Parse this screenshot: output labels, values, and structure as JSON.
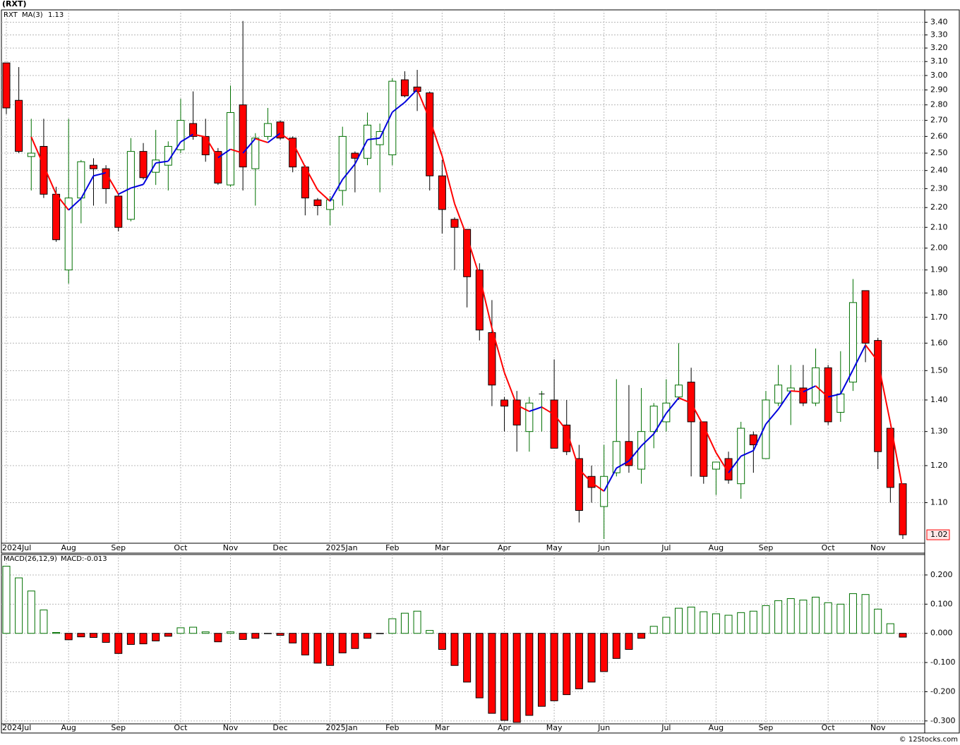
{
  "chart_data": [
    {
      "type": "candlestick",
      "title": "(RXT)",
      "symbol": "RXT",
      "log_scale": true,
      "grid": true,
      "up_color": "#007000",
      "down_color": "#ff0000",
      "categories": [
        "2024Jul",
        null,
        null,
        null,
        null,
        "Aug",
        null,
        null,
        null,
        "Sep",
        null,
        null,
        null,
        null,
        "Oct",
        null,
        null,
        null,
        "Nov",
        null,
        null,
        null,
        "Dec",
        null,
        null,
        null,
        "2025Jan",
        null,
        null,
        null,
        null,
        "Feb",
        null,
        null,
        null,
        "Mar",
        null,
        null,
        null,
        null,
        "Apr",
        null,
        null,
        null,
        "May",
        null,
        null,
        null,
        "Jun",
        null,
        null,
        null,
        null,
        "Jul",
        null,
        null,
        null,
        "Aug",
        null,
        null,
        null,
        "Sep",
        null,
        null,
        null,
        null,
        "Oct",
        null,
        null,
        null,
        "Nov",
        null,
        null
      ],
      "open": [
        3.09,
        2.83,
        2.48,
        2.54,
        2.27,
        1.9,
        2.25,
        2.43,
        2.41,
        2.26,
        2.14,
        2.51,
        2.39,
        2.43,
        2.52,
        2.68,
        2.6,
        2.51,
        2.32,
        2.8,
        2.41,
        2.6,
        2.69,
        2.59,
        2.42,
        2.24,
        2.19,
        2.29,
        2.5,
        2.47,
        2.55,
        2.49,
        2.97,
        2.92,
        2.88,
        2.37,
        2.14,
        2.09,
        1.9,
        1.64,
        1.4,
        1.4,
        1.3,
        1.42,
        1.4,
        1.32,
        1.22,
        1.17,
        1.09,
        1.18,
        1.27,
        1.19,
        1.3,
        1.33,
        1.41,
        1.46,
        1.33,
        1.19,
        1.22,
        1.15,
        1.29,
        1.22,
        1.39,
        1.43,
        1.44,
        1.39,
        1.51,
        1.36,
        1.46,
        1.81,
        1.61,
        1.31,
        1.15
      ],
      "high": [
        3.09,
        3.06,
        2.71,
        2.71,
        2.31,
        2.71,
        2.46,
        2.47,
        2.43,
        2.27,
        2.59,
        2.56,
        2.64,
        2.57,
        2.84,
        2.89,
        2.71,
        2.53,
        2.93,
        3.41,
        2.62,
        2.78,
        2.7,
        2.6,
        2.43,
        2.25,
        2.26,
        2.66,
        2.51,
        2.75,
        2.68,
        2.98,
        3.03,
        3.04,
        2.89,
        2.46,
        2.15,
        2.09,
        1.93,
        1.77,
        1.41,
        1.43,
        1.41,
        1.43,
        1.54,
        1.4,
        1.26,
        1.2,
        1.26,
        1.47,
        1.45,
        1.44,
        1.39,
        1.47,
        1.6,
        1.51,
        1.33,
        1.21,
        1.24,
        1.33,
        1.3,
        1.43,
        1.52,
        1.52,
        1.52,
        1.58,
        1.52,
        1.57,
        1.86,
        1.81,
        1.62,
        1.31,
        1.15
      ],
      "low": [
        2.74,
        2.5,
        2.29,
        2.25,
        2.03,
        1.84,
        2.12,
        2.21,
        2.22,
        2.08,
        2.13,
        2.35,
        2.32,
        2.29,
        2.5,
        2.58,
        2.45,
        2.32,
        2.31,
        2.29,
        2.21,
        2.58,
        2.58,
        2.39,
        2.16,
        2.16,
        2.11,
        2.21,
        2.28,
        2.43,
        2.28,
        2.43,
        2.85,
        2.76,
        2.29,
        2.07,
        1.9,
        1.74,
        1.61,
        1.38,
        1.3,
        1.24,
        1.24,
        1.3,
        1.25,
        1.23,
        1.05,
        1.1,
        1.01,
        1.17,
        1.18,
        1.15,
        1.25,
        1.3,
        1.4,
        1.17,
        1.15,
        1.12,
        1.15,
        1.11,
        1.18,
        1.22,
        1.38,
        1.32,
        1.38,
        1.38,
        1.32,
        1.33,
        1.43,
        1.53,
        1.19,
        1.1,
        1.01
      ],
      "close": [
        2.78,
        2.51,
        2.5,
        2.27,
        2.04,
        2.25,
        2.45,
        2.41,
        2.3,
        2.1,
        2.51,
        2.36,
        2.46,
        2.54,
        2.7,
        2.6,
        2.49,
        2.33,
        2.75,
        2.42,
        2.59,
        2.68,
        2.59,
        2.42,
        2.25,
        2.21,
        2.24,
        2.6,
        2.47,
        2.67,
        2.63,
        2.96,
        2.86,
        2.89,
        2.37,
        2.19,
        2.1,
        1.87,
        1.65,
        1.45,
        1.38,
        1.32,
        1.39,
        1.42,
        1.25,
        1.24,
        1.08,
        1.14,
        1.17,
        1.27,
        1.2,
        1.3,
        1.38,
        1.39,
        1.45,
        1.33,
        1.17,
        1.21,
        1.16,
        1.31,
        1.26,
        1.4,
        1.45,
        1.44,
        1.39,
        1.51,
        1.33,
        1.42,
        1.76,
        1.6,
        1.24,
        1.14,
        1.02
      ],
      "ma": {
        "name": "MA(3)",
        "current": 1.13,
        "rising_color": "#0000dd",
        "falling_color": "#ff0000",
        "values": [
          null,
          null,
          2.597,
          2.427,
          2.27,
          2.187,
          2.247,
          2.37,
          2.387,
          2.27,
          2.303,
          2.323,
          2.443,
          2.453,
          2.567,
          2.613,
          2.597,
          2.473,
          2.523,
          2.5,
          2.587,
          2.563,
          2.62,
          2.563,
          2.42,
          2.293,
          2.233,
          2.35,
          2.437,
          2.58,
          2.59,
          2.753,
          2.817,
          2.903,
          2.707,
          2.483,
          2.22,
          2.053,
          1.873,
          1.657,
          1.493,
          1.383,
          1.363,
          1.377,
          1.353,
          1.303,
          1.19,
          1.153,
          1.13,
          1.193,
          1.213,
          1.257,
          1.293,
          1.357,
          1.407,
          1.39,
          1.317,
          1.237,
          1.18,
          1.227,
          1.243,
          1.323,
          1.37,
          1.43,
          1.427,
          1.447,
          1.41,
          1.42,
          1.503,
          1.593,
          1.533,
          1.327,
          1.133
        ]
      },
      "ylim": [
        1.0,
        3.5
      ],
      "yticks": [
        {
          "value": 1.1,
          "label": "1.10"
        },
        {
          "value": 1.2,
          "label": "1.20"
        },
        {
          "value": 1.3,
          "label": "1.30"
        },
        {
          "value": 1.4,
          "label": "1.40"
        },
        {
          "value": 1.5,
          "label": "1.50"
        },
        {
          "value": 1.6,
          "label": "1.60"
        },
        {
          "value": 1.7,
          "label": "1.70"
        },
        {
          "value": 1.8,
          "label": "1.80"
        },
        {
          "value": 1.9,
          "label": "1.90"
        },
        {
          "value": 2.0,
          "label": "2.00"
        },
        {
          "value": 2.1,
          "label": "2.10"
        },
        {
          "value": 2.2,
          "label": "2.20"
        },
        {
          "value": 2.3,
          "label": "2.30"
        },
        {
          "value": 2.4,
          "label": "2.40"
        },
        {
          "value": 2.5,
          "label": "2.50"
        },
        {
          "value": 2.6,
          "label": "2.60"
        },
        {
          "value": 2.7,
          "label": "2.70"
        },
        {
          "value": 2.8,
          "label": "2.80"
        },
        {
          "value": 2.9,
          "label": "2.90"
        },
        {
          "value": 3.0,
          "label": "3.00"
        },
        {
          "value": 3.1,
          "label": "3.10"
        },
        {
          "value": 3.2,
          "label": "3.20"
        },
        {
          "value": 3.3,
          "label": "3.30"
        },
        {
          "value": 3.4,
          "label": "3.40"
        }
      ]
    },
    {
      "type": "bar",
      "title": "MACD(26,12,9)",
      "current_label": "MACD:-0.013",
      "grid": true,
      "up_color": "#007000",
      "down_color": "#ff0000",
      "source": "© 12Stocks.com",
      "series": [
        {
          "name": "MACD",
          "values": [
            0.23,
            0.19,
            0.145,
            0.08,
            0.003,
            -0.022,
            -0.012,
            -0.014,
            -0.031,
            -0.069,
            -0.038,
            -0.036,
            -0.026,
            -0.01,
            0.019,
            0.021,
            0.005,
            -0.029,
            0.005,
            -0.021,
            -0.017,
            -0.001,
            -0.007,
            -0.033,
            -0.074,
            -0.102,
            -0.11,
            -0.067,
            -0.052,
            -0.017,
            -0.001,
            0.05,
            0.069,
            0.076,
            0.01,
            -0.055,
            -0.11,
            -0.167,
            -0.221,
            -0.274,
            -0.298,
            -0.305,
            -0.281,
            -0.25,
            -0.231,
            -0.21,
            -0.19,
            -0.167,
            -0.131,
            -0.086,
            -0.055,
            -0.017,
            0.024,
            0.055,
            0.086,
            0.09,
            0.074,
            0.067,
            0.062,
            0.071,
            0.076,
            0.095,
            0.112,
            0.119,
            0.114,
            0.124,
            0.105,
            0.1,
            0.136,
            0.133,
            0.083,
            0.033,
            -0.013
          ]
        }
      ],
      "ylim": [
        -0.31,
        0.27
      ],
      "yticks": [
        {
          "value": -0.3,
          "label": "-0.300"
        },
        {
          "value": -0.2,
          "label": "-0.200"
        },
        {
          "value": -0.1,
          "label": "-0.100"
        },
        {
          "value": 0,
          "label": "0.000"
        },
        {
          "value": 0.1,
          "label": "0.100"
        },
        {
          "value": 0.2,
          "label": "0.200"
        }
      ]
    }
  ]
}
